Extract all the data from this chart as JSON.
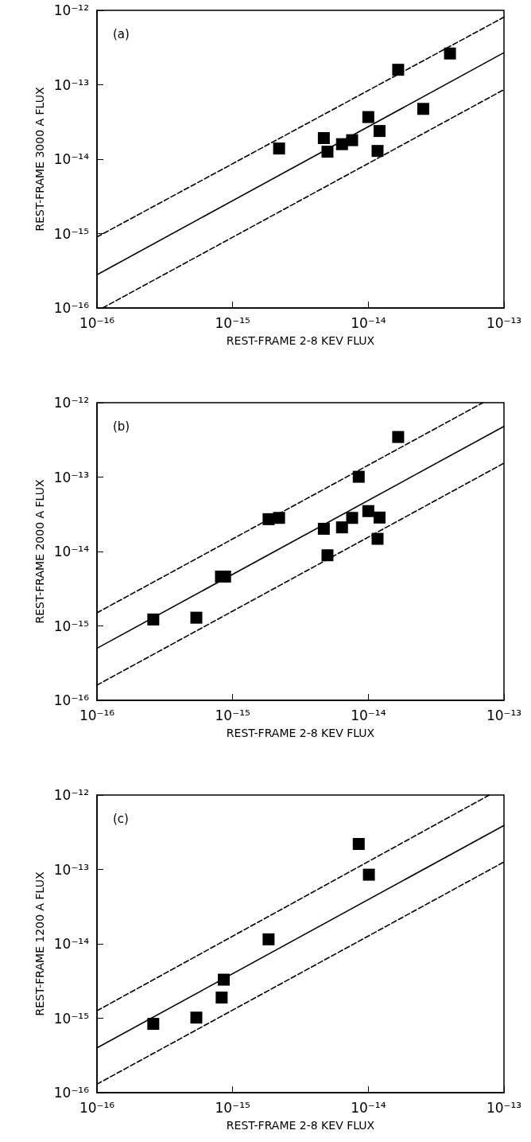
{
  "chart_data": [
    {
      "type": "scatter",
      "xlabel": "REST-FRAME 2-8 KEV FLUX",
      "ylabel": "REST-FRAME 3000 A FLUX",
      "annotations": [
        "(a)"
      ],
      "log": "xy",
      "grid": false,
      "marker": "square",
      "xlim": [
        1e-16,
        1e-13
      ],
      "ylim": [
        1e-16,
        1e-12
      ],
      "xticks": [
        {
          "value": 1e-16,
          "label": "10⁻¹⁶"
        },
        {
          "value": 1e-15,
          "label": "10⁻¹⁵"
        },
        {
          "value": 1e-14,
          "label": "10⁻¹⁴"
        },
        {
          "value": 1e-13,
          "label": "10⁻¹³"
        }
      ],
      "yticks": [
        {
          "value": 1e-16,
          "label": "10⁻¹⁶"
        },
        {
          "value": 1e-15,
          "label": "10⁻¹⁵"
        },
        {
          "value": 1e-14,
          "label": "10⁻¹⁴"
        },
        {
          "value": 1e-13,
          "label": "10⁻¹³"
        },
        {
          "value": 1e-12,
          "label": "10⁻¹²"
        }
      ],
      "series": [
        {
          "type": "scatter",
          "color": "#000000",
          "x": [
            2.2e-15,
            4.7e-15,
            5e-15,
            6.4e-15,
            7.6e-15,
            1e-14,
            1.21e-14,
            1.17e-14,
            1.66e-14,
            2.54e-14,
            4e-14
          ],
          "values": [
            1.39e-14,
            1.92e-14,
            1.26e-14,
            1.59e-14,
            1.8e-14,
            3.68e-14,
            2.39e-14,
            1.29e-14,
            1.59e-13,
            4.74e-14,
            2.63e-13
          ]
        },
        {
          "type": "line",
          "color": "#000000",
          "line_style": "solid",
          "marker": "none",
          "x": [
            1e-16,
            1e-13
          ],
          "values": [
            2.8e-16,
            2.7e-13
          ]
        },
        {
          "type": "line",
          "color": "#000000",
          "line_style": "dashed",
          "marker": "none",
          "x": [
            1e-16,
            1e-13
          ],
          "values": [
            9e-16,
            8.1e-13
          ]
        },
        {
          "type": "line",
          "color": "#000000",
          "line_style": "dashed",
          "marker": "none",
          "x": [
            1.1e-16,
            1e-13
          ],
          "values": [
            1e-16,
            8.6e-14
          ]
        }
      ]
    },
    {
      "type": "scatter",
      "xlabel": "REST-FRAME 2-8 KEV FLUX",
      "ylabel": "REST-FRAME 2000 A FLUX",
      "annotations": [
        "(b)"
      ],
      "log": "xy",
      "grid": false,
      "marker": "square",
      "xlim": [
        1e-16,
        1e-13
      ],
      "ylim": [
        1e-16,
        1e-12
      ],
      "xticks": [
        {
          "value": 1e-16,
          "label": "10⁻¹⁶"
        },
        {
          "value": 1e-15,
          "label": "10⁻¹⁵"
        },
        {
          "value": 1e-14,
          "label": "10⁻¹⁴"
        },
        {
          "value": 1e-13,
          "label": "10⁻¹³"
        }
      ],
      "yticks": [
        {
          "value": 1e-16,
          "label": "10⁻¹⁶"
        },
        {
          "value": 1e-15,
          "label": "10⁻¹⁵"
        },
        {
          "value": 1e-14,
          "label": "10⁻¹⁴"
        },
        {
          "value": 1e-13,
          "label": "10⁻¹³"
        },
        {
          "value": 1e-12,
          "label": "10⁻¹²"
        }
      ],
      "series": [
        {
          "type": "scatter",
          "color": "#000000",
          "x": [
            2.6e-16,
            5.4e-16,
            8.2e-16,
            8.8e-16,
            1.84e-15,
            2.2e-15,
            4.7e-15,
            5e-15,
            6.4e-15,
            7.6e-15,
            8.5e-15,
            1e-14,
            1.21e-14,
            1.17e-14,
            1.66e-14
          ],
          "values": [
            1.22e-15,
            1.29e-15,
            4.6e-15,
            4.6e-15,
            2.72e-14,
            2.83e-14,
            2.02e-14,
            8.9e-15,
            2.11e-14,
            2.83e-14,
            1.01e-13,
            3.49e-14,
            2.86e-14,
            1.48e-14,
            3.46e-13
          ]
        },
        {
          "type": "line",
          "color": "#000000",
          "line_style": "solid",
          "marker": "none",
          "x": [
            1e-16,
            1e-13
          ],
          "values": [
            5e-16,
            4.8e-13
          ]
        },
        {
          "type": "line",
          "color": "#000000",
          "line_style": "dashed",
          "marker": "none",
          "x": [
            1e-16,
            7e-14
          ],
          "values": [
            1.5e-15,
            1e-12
          ]
        },
        {
          "type": "line",
          "color": "#000000",
          "line_style": "dashed",
          "marker": "none",
          "x": [
            1e-16,
            1e-13
          ],
          "values": [
            1.6e-16,
            1.54e-13
          ]
        }
      ]
    },
    {
      "type": "scatter",
      "xlabel": "REST-FRAME 2-8 KEV FLUX",
      "ylabel": "REST-FRAME 1200 A FLUX",
      "annotations": [
        "(c)"
      ],
      "log": "xy",
      "grid": false,
      "marker": "square",
      "xlim": [
        1e-16,
        1e-13
      ],
      "ylim": [
        1e-16,
        1e-12
      ],
      "xticks": [
        {
          "value": 1e-16,
          "label": "10⁻¹⁶"
        },
        {
          "value": 1e-15,
          "label": "10⁻¹⁵"
        },
        {
          "value": 1e-14,
          "label": "10⁻¹⁴"
        },
        {
          "value": 1e-13,
          "label": "10⁻¹³"
        }
      ],
      "yticks": [
        {
          "value": 1e-16,
          "label": "10⁻¹⁶"
        },
        {
          "value": 1e-15,
          "label": "10⁻¹⁵"
        },
        {
          "value": 1e-14,
          "label": "10⁻¹⁴"
        },
        {
          "value": 1e-13,
          "label": "10⁻¹³"
        },
        {
          "value": 1e-12,
          "label": "10⁻¹²"
        }
      ],
      "series": [
        {
          "type": "scatter",
          "color": "#000000",
          "x": [
            2.6e-16,
            5.4e-16,
            8.3e-16,
            8.6e-16,
            1.84e-15,
            8.5e-15,
            1.01e-14
          ],
          "values": [
            8.4e-16,
            1.02e-15,
            1.9e-15,
            3.3e-15,
            1.15e-14,
            2.2e-13,
            8.5e-14
          ]
        },
        {
          "type": "line",
          "color": "#000000",
          "line_style": "solid",
          "marker": "none",
          "x": [
            1e-16,
            1e-13
          ],
          "values": [
            4e-16,
            3.9e-13
          ]
        },
        {
          "type": "line",
          "color": "#000000",
          "line_style": "dashed",
          "marker": "none",
          "x": [
            1e-16,
            7.8e-14
          ],
          "values": [
            1.26e-15,
            1e-12
          ]
        },
        {
          "type": "line",
          "color": "#000000",
          "line_style": "dashed",
          "marker": "none",
          "x": [
            1e-16,
            1e-13
          ],
          "values": [
            1.3e-16,
            1.26e-13
          ]
        }
      ]
    }
  ]
}
